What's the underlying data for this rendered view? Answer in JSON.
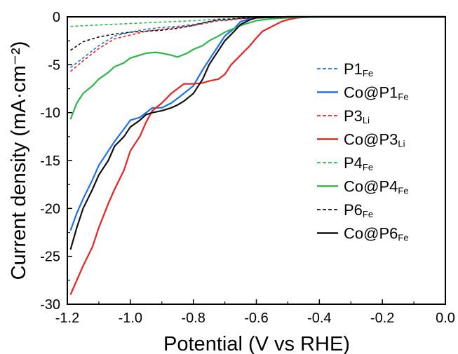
{
  "chart_data": {
    "type": "line",
    "xlabel": "Potential (V vs RHE)",
    "ylabel": "Current density (mA·cm⁻²)",
    "xlim": [
      -1.2,
      0.0
    ],
    "ylim": [
      -30,
      0
    ],
    "xticks": [
      "-1.2",
      "-1.0",
      "-0.8",
      "-0.6",
      "-0.4",
      "-0.2",
      "0.0"
    ],
    "yticks": [
      "0",
      "-5",
      "-10",
      "-15",
      "-20",
      "-25",
      "-30"
    ],
    "legend_position": "right",
    "series": [
      {
        "name": "P1",
        "sub": "Fe",
        "color": "#1e6ff0",
        "dash": "dashed",
        "x": [
          -1.19,
          -1.15,
          -1.1,
          -1.05,
          -1.0,
          -0.95,
          -0.9,
          -0.85,
          -0.8,
          -0.75,
          -0.72,
          -0.7,
          -0.65,
          -0.6,
          -0.5,
          -0.4,
          0.0
        ],
        "y": [
          -5.3,
          -4.3,
          -3.0,
          -2.0,
          -1.6,
          -1.3,
          -1.1,
          -1.0,
          -0.8,
          -0.5,
          -0.35,
          -0.35,
          -0.15,
          -0.1,
          -0.05,
          0.0,
          0.0
        ]
      },
      {
        "name": "Co@P1",
        "sub": "Fe",
        "color": "#1e6ff0",
        "dash": "solid",
        "x": [
          -1.19,
          -1.17,
          -1.15,
          -1.12,
          -1.1,
          -1.07,
          -1.05,
          -1.02,
          -1.0,
          -0.97,
          -0.95,
          -0.93,
          -0.9,
          -0.87,
          -0.85,
          -0.83,
          -0.8,
          -0.77,
          -0.75,
          -0.72,
          -0.7,
          -0.67,
          -0.65,
          -0.62,
          -0.6,
          -0.55,
          -0.5,
          -0.45,
          -0.4,
          0.0
        ],
        "y": [
          -22.3,
          -20.5,
          -19.0,
          -17.0,
          -15.5,
          -14.0,
          -13.0,
          -11.7,
          -10.8,
          -10.5,
          -10.0,
          -9.5,
          -9.5,
          -9.0,
          -8.5,
          -8.0,
          -7.2,
          -5.5,
          -4.5,
          -3.0,
          -2.0,
          -1.2,
          -0.5,
          -0.2,
          -0.1,
          -0.05,
          0.0,
          0.0,
          0.0,
          0.0
        ]
      },
      {
        "name": "P3",
        "sub": "Li",
        "color": "#ee2020",
        "dash": "dashed",
        "x": [
          -1.19,
          -1.15,
          -1.1,
          -1.05,
          -1.0,
          -0.95,
          -0.9,
          -0.85,
          -0.8,
          -0.75,
          -0.72,
          -0.7,
          -0.65,
          -0.6,
          -0.5,
          -0.4,
          0.0
        ],
        "y": [
          -5.7,
          -4.6,
          -3.3,
          -2.3,
          -1.9,
          -1.5,
          -1.3,
          -1.1,
          -0.9,
          -0.6,
          -0.4,
          -0.4,
          -0.2,
          -0.1,
          -0.05,
          0.0,
          0.0
        ]
      },
      {
        "name": "Co@P3",
        "sub": "Li",
        "color": "#ee2020",
        "dash": "solid",
        "x": [
          -1.19,
          -1.17,
          -1.15,
          -1.12,
          -1.1,
          -1.07,
          -1.05,
          -1.02,
          -1.0,
          -0.97,
          -0.95,
          -0.93,
          -0.9,
          -0.87,
          -0.85,
          -0.83,
          -0.8,
          -0.77,
          -0.75,
          -0.72,
          -0.7,
          -0.68,
          -0.65,
          -0.62,
          -0.6,
          -0.58,
          -0.55,
          -0.52,
          -0.5,
          -0.47,
          -0.45,
          -0.42,
          -0.4,
          0.0
        ],
        "y": [
          -29.0,
          -27.5,
          -26.0,
          -24.0,
          -22.0,
          -19.5,
          -18.0,
          -16.0,
          -14.0,
          -12.5,
          -11.0,
          -9.8,
          -9.0,
          -8.0,
          -7.5,
          -7.0,
          -7.0,
          -6.9,
          -6.7,
          -6.5,
          -6.0,
          -5.0,
          -4.0,
          -3.0,
          -2.2,
          -1.5,
          -1.0,
          -0.5,
          -0.3,
          -0.1,
          -0.05,
          0.0,
          0.0,
          0.0
        ]
      },
      {
        "name": "P4",
        "sub": "Fe",
        "color": "#2bb84a",
        "dash": "dashed",
        "x": [
          -1.19,
          -1.1,
          -1.0,
          -0.9,
          -0.8,
          -0.7,
          -0.6,
          -0.5,
          -0.4,
          0.0
        ],
        "y": [
          -1.0,
          -0.85,
          -0.7,
          -0.55,
          -0.4,
          -0.2,
          -0.1,
          -0.05,
          0.0,
          0.0
        ]
      },
      {
        "name": "Co@P4",
        "sub": "Fe",
        "color": "#2bb84a",
        "dash": "solid",
        "x": [
          -1.19,
          -1.17,
          -1.15,
          -1.12,
          -1.1,
          -1.07,
          -1.05,
          -1.02,
          -1.0,
          -0.97,
          -0.95,
          -0.92,
          -0.9,
          -0.87,
          -0.85,
          -0.82,
          -0.8,
          -0.77,
          -0.75,
          -0.72,
          -0.7,
          -0.67,
          -0.65,
          -0.6,
          -0.55,
          -0.5,
          -0.45,
          -0.4,
          0.0
        ],
        "y": [
          -10.7,
          -9.0,
          -8.0,
          -7.2,
          -6.5,
          -5.8,
          -5.2,
          -4.8,
          -4.3,
          -4.0,
          -3.8,
          -3.7,
          -3.8,
          -4.0,
          -4.2,
          -3.8,
          -3.4,
          -3.0,
          -2.5,
          -2.0,
          -1.6,
          -1.2,
          -0.9,
          -0.4,
          -0.2,
          -0.1,
          -0.05,
          0.0,
          0.0
        ]
      },
      {
        "name": "P6",
        "sub": "Fe",
        "color": "#111111",
        "dash": "dashed",
        "x": [
          -1.19,
          -1.15,
          -1.1,
          -1.05,
          -1.0,
          -0.95,
          -0.9,
          -0.85,
          -0.8,
          -0.75,
          -0.72,
          -0.7,
          -0.65,
          -0.6,
          -0.5,
          -0.4,
          0.0
        ],
        "y": [
          -3.5,
          -2.6,
          -2.1,
          -1.8,
          -1.6,
          -1.5,
          -1.4,
          -1.2,
          -0.9,
          -0.5,
          -0.3,
          -0.3,
          -0.15,
          -0.1,
          -0.05,
          0.0,
          0.0
        ]
      },
      {
        "name": "Co@P6",
        "sub": "Fe",
        "color": "#111111",
        "dash": "solid",
        "x": [
          -1.19,
          -1.17,
          -1.15,
          -1.12,
          -1.1,
          -1.07,
          -1.05,
          -1.02,
          -1.0,
          -0.97,
          -0.95,
          -0.93,
          -0.9,
          -0.87,
          -0.85,
          -0.83,
          -0.8,
          -0.77,
          -0.75,
          -0.72,
          -0.7,
          -0.67,
          -0.65,
          -0.62,
          -0.6,
          -0.55,
          -0.5,
          -0.45,
          -0.4,
          0.0
        ],
        "y": [
          -24.3,
          -22.0,
          -20.0,
          -18.0,
          -16.5,
          -15.0,
          -13.5,
          -12.5,
          -11.5,
          -10.8,
          -10.2,
          -10.0,
          -9.8,
          -9.5,
          -9.2,
          -8.8,
          -8.0,
          -6.5,
          -5.0,
          -3.5,
          -2.5,
          -1.5,
          -0.8,
          -0.3,
          -0.1,
          -0.05,
          0.0,
          0.0,
          0.0,
          0.0
        ]
      }
    ]
  }
}
